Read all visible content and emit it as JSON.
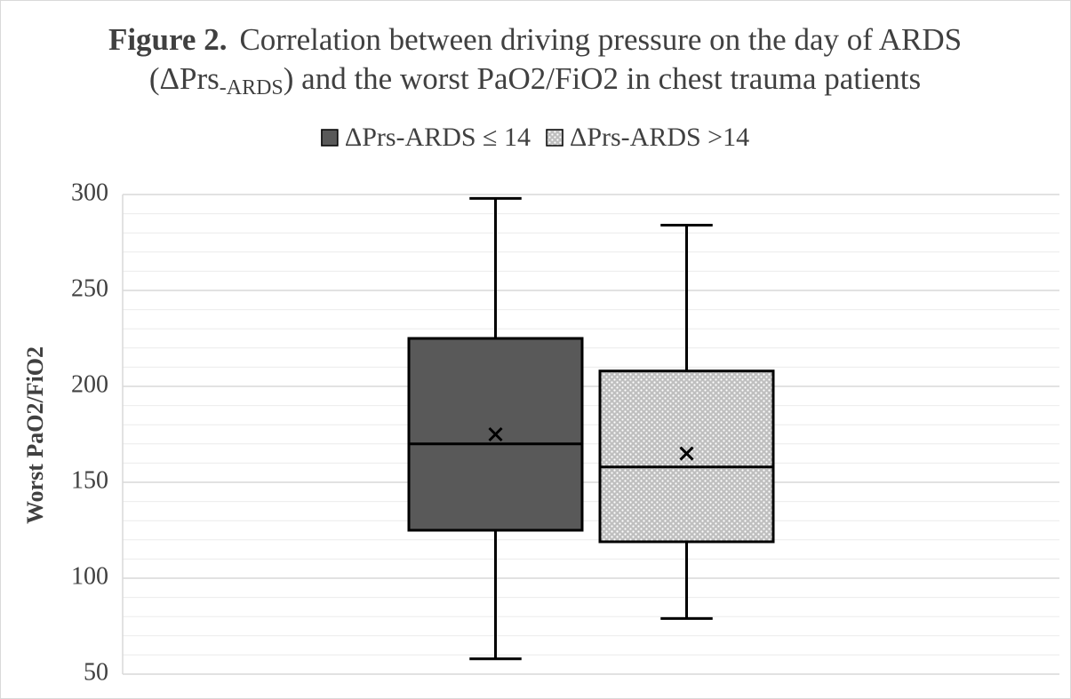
{
  "chart_data": {
    "type": "box",
    "title": {
      "label": "Figure 2.",
      "line1": "Correlation between driving pressure on the day of ARDS",
      "line2_start": "(ΔPrs",
      "subscript": "-ARDS",
      "line2_end": ") and the worst PaO2/FiO2 in chest trauma patients"
    },
    "y_label": "Worst PaO2/FiO2",
    "ylim": [
      50,
      300
    ],
    "yticks": [
      50,
      100,
      150,
      200,
      250,
      300
    ],
    "grid": true,
    "minor_grid": true,
    "legend": "top",
    "series": [
      {
        "name": "ΔPrs-ARDS ≤ 14",
        "color": "#595959",
        "min": 58,
        "q1": 125,
        "median": 170,
        "q3": 225,
        "max": 298,
        "mean": 175
      },
      {
        "name": "ΔPrs-ARDS >14",
        "color": "#d9d9d9",
        "pattern": "dots",
        "min": 79,
        "q1": 119,
        "median": 158,
        "q3": 208,
        "max": 284,
        "mean": 165
      }
    ]
  }
}
